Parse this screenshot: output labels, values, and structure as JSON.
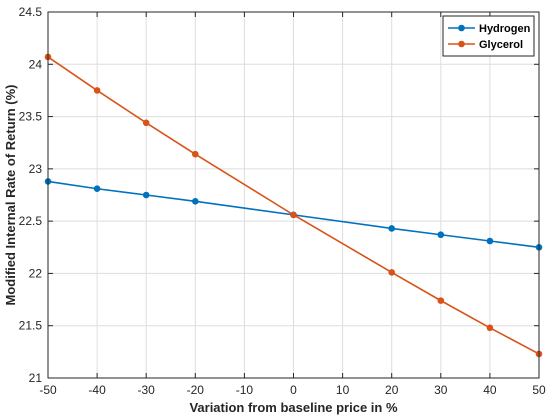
{
  "chart_data": {
    "type": "line",
    "title": "",
    "xlabel": "Variation from baseline price in %",
    "ylabel": "Modified Internal Rate of Return (%)",
    "xlim": [
      -50,
      50
    ],
    "ylim": [
      21,
      24.5
    ],
    "xticks": [
      -50,
      -40,
      -30,
      -20,
      -10,
      0,
      10,
      20,
      30,
      40,
      50
    ],
    "yticks": [
      21,
      21.5,
      22,
      22.5,
      23,
      23.5,
      24,
      24.5
    ],
    "xtick_labels": [
      "-50",
      "-40",
      "-30",
      "-20",
      "-10",
      "0",
      "10",
      "20",
      "30",
      "40",
      "50"
    ],
    "ytick_labels": [
      "21",
      "21.5",
      "22",
      "22.5",
      "23",
      "23.5",
      "24",
      "24.5"
    ],
    "grid": true,
    "legend_position": "top-right",
    "series": [
      {
        "name": "Hydrogen",
        "color": "#0072BD",
        "x": [
          -50,
          -40,
          -30,
          -20,
          0,
          20,
          30,
          40,
          50
        ],
        "y": [
          22.88,
          22.81,
          22.75,
          22.69,
          22.56,
          22.43,
          22.37,
          22.31,
          22.25
        ]
      },
      {
        "name": "Glycerol",
        "color": "#D95319",
        "x": [
          -50,
          -40,
          -30,
          -20,
          0,
          20,
          30,
          40,
          50
        ],
        "y": [
          24.07,
          23.75,
          23.44,
          23.14,
          22.56,
          22.01,
          21.74,
          21.48,
          21.23
        ]
      }
    ]
  }
}
